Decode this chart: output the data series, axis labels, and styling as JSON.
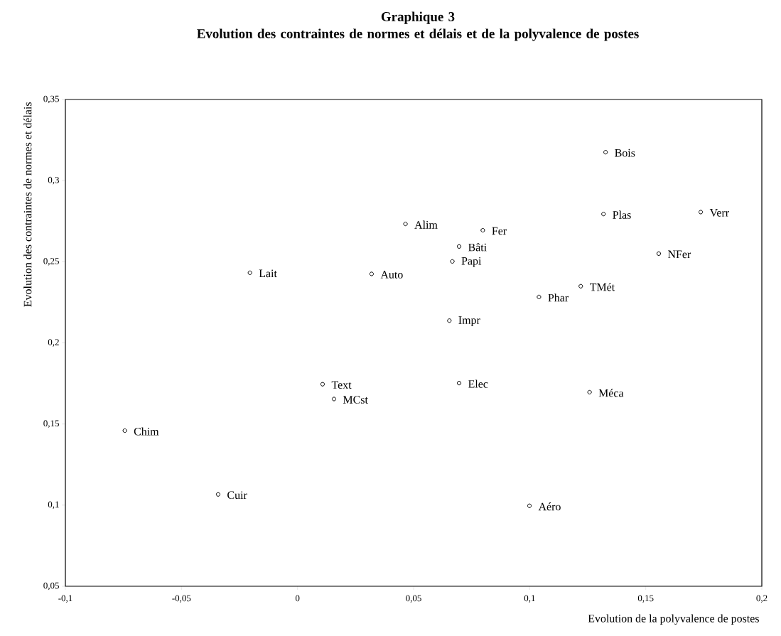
{
  "chart_data": {
    "type": "scatter",
    "title": "Graphique 3",
    "subtitle": "Evolution des contraintes de normes et délais et de la polyvalence de postes",
    "xlabel": "Evolution de la polyvalence de postes",
    "ylabel": "Evolution des contraintes de normes et délais",
    "x": [
      -0.0205,
      0.0319,
      0.0465,
      0.1327,
      0.1318,
      0.1737,
      0.0798,
      0.0696,
      0.0667,
      0.1556,
      0.122,
      0.104,
      0.0654,
      0.0108,
      0.0157,
      -0.0744,
      -0.0342,
      0.0696,
      0.1258,
      0.0999
    ],
    "values": [
      0.2432,
      0.2425,
      0.2733,
      0.3175,
      0.2794,
      0.2806,
      0.2694,
      0.2594,
      0.2502,
      0.255,
      0.2349,
      0.2283,
      0.2137,
      0.1745,
      0.1654,
      0.1459,
      0.1066,
      0.1752,
      0.1696,
      0.0996
    ],
    "color": "#000000",
    "marker": "circle",
    "xlim": [
      -0.1,
      0.2
    ],
    "ylim": [
      0.05,
      0.35
    ],
    "xticks": [
      {
        "value": -0.1,
        "label": "-0,1"
      },
      {
        "value": -0.05,
        "label": "-0,05"
      },
      0,
      {
        "value": 0.05,
        "label": "0,05"
      },
      {
        "value": 0.1,
        "label": "0,1"
      },
      {
        "value": 0.15,
        "label": "0,15"
      },
      {
        "value": 0.2,
        "label": "0,2"
      }
    ],
    "yticks": [
      {
        "value": 0.05,
        "label": "0,05"
      },
      {
        "value": 0.1,
        "label": "0,1"
      },
      {
        "value": 0.15,
        "label": "0,15"
      },
      {
        "value": 0.2,
        "label": "0,2"
      },
      {
        "value": 0.25,
        "label": "0,25"
      },
      {
        "value": 0.3,
        "label": "0,3"
      },
      {
        "value": 0.35,
        "label": "0,35"
      }
    ],
    "annotations": [
      {
        "text": "Lait",
        "x": -0.0205,
        "y": 0.2432
      },
      {
        "text": "Auto",
        "x": 0.0319,
        "y": 0.2425
      },
      {
        "text": "Alim",
        "x": 0.0465,
        "y": 0.2733
      },
      {
        "text": "Bois",
        "x": 0.1327,
        "y": 0.3175
      },
      {
        "text": "Plas",
        "x": 0.1318,
        "y": 0.2794
      },
      {
        "text": "Verr",
        "x": 0.1737,
        "y": 0.2806
      },
      {
        "text": "Fer",
        "x": 0.0798,
        "y": 0.2694
      },
      {
        "text": "Bâti",
        "x": 0.0696,
        "y": 0.2594
      },
      {
        "text": "Papi",
        "x": 0.0667,
        "y": 0.2502
      },
      {
        "text": "NFer",
        "x": 0.1556,
        "y": 0.255
      },
      {
        "text": "TMét",
        "x": 0.122,
        "y": 0.2349
      },
      {
        "text": "Phar",
        "x": 0.104,
        "y": 0.2283
      },
      {
        "text": "Impr",
        "x": 0.0654,
        "y": 0.2137
      },
      {
        "text": "Text",
        "x": 0.0108,
        "y": 0.1745
      },
      {
        "text": "MCst",
        "x": 0.0157,
        "y": 0.1654
      },
      {
        "text": "Chim",
        "x": -0.0744,
        "y": 0.1459
      },
      {
        "text": "Cuir",
        "x": -0.0342,
        "y": 0.1066
      },
      {
        "text": "Elec",
        "x": 0.0696,
        "y": 0.1752
      },
      {
        "text": "Méca",
        "x": 0.1258,
        "y": 0.1696
      },
      {
        "text": "Aéro",
        "x": 0.0999,
        "y": 0.0996
      }
    ]
  }
}
